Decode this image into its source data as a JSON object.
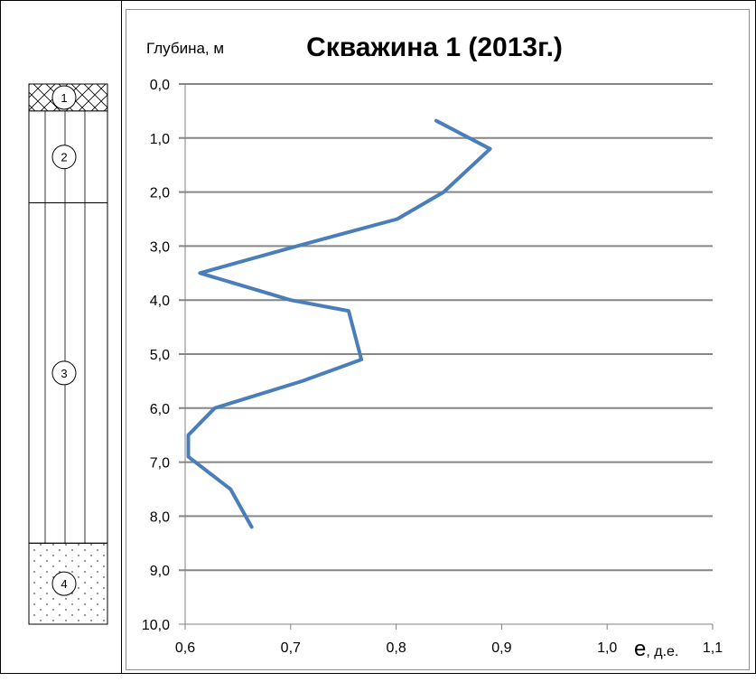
{
  "chart_data": {
    "type": "line",
    "title": "Скважина 1 (2013г.)",
    "ylabel": "Глубина, м",
    "xlabel_big": "e",
    "xlabel_small": ", д.е.",
    "x_ticks": [
      "0,6",
      "0,7",
      "0,8",
      "0,9",
      "1,0",
      "1,1"
    ],
    "y_ticks": [
      "0,0",
      "1,0",
      "2,0",
      "3,0",
      "4,0",
      "5,0",
      "6,0",
      "7,0",
      "8,0",
      "9,0",
      "10,0"
    ],
    "xlim": [
      0.6,
      1.1
    ],
    "ylim": [
      0,
      10
    ],
    "y_inverted": true,
    "grid": "horizontal",
    "line_color": "#4a7ebb",
    "series": [
      {
        "points": [
          [
            0.838,
            0.68
          ],
          [
            0.889,
            1.2
          ],
          [
            0.845,
            2.0
          ],
          [
            0.801,
            2.5
          ],
          [
            0.706,
            3.0
          ],
          [
            0.614,
            3.5
          ],
          [
            0.7,
            4.0
          ],
          [
            0.755,
            4.2
          ],
          [
            0.767,
            5.1
          ],
          [
            0.711,
            5.5
          ],
          [
            0.628,
            6.0
          ],
          [
            0.603,
            6.5
          ],
          [
            0.603,
            6.9
          ],
          [
            0.643,
            7.5
          ],
          [
            0.663,
            8.2
          ]
        ]
      }
    ]
  },
  "column": {
    "layers": [
      {
        "label": "1",
        "from": 0.0,
        "to": 0.5,
        "pattern": "crosshatch"
      },
      {
        "label": "2",
        "from": 0.5,
        "to": 2.2,
        "pattern": "vertical-lines"
      },
      {
        "label": "3",
        "from": 2.2,
        "to": 8.5,
        "pattern": "vertical-lines"
      },
      {
        "label": "4",
        "from": 8.5,
        "to": 10.0,
        "pattern": "dots"
      }
    ]
  }
}
